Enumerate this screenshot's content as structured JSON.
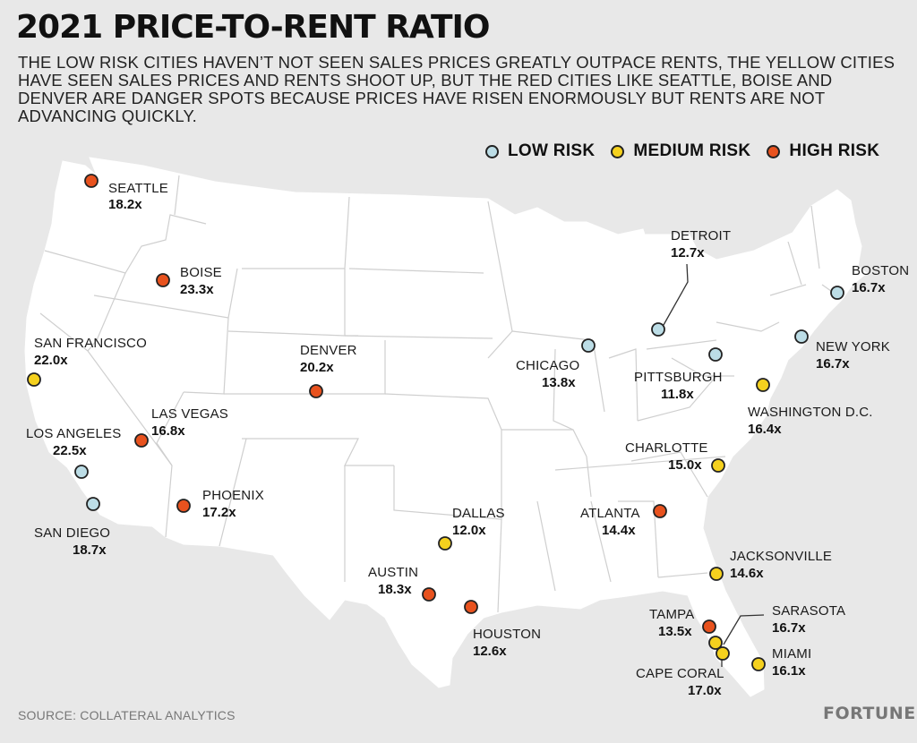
{
  "title": "2021 PRICE-TO-RENT RATIO",
  "subtitle": "THE LOW RISK CITIES HAVEN’T NOT SEEN SALES PRICES GREATLY OUTPACE RENTS, THE YELLOW CITIES HAVE SEEN SALES PRICES AND RENTS SHOOT UP, BUT THE RED CITIES LIKE SEATTLE, BOISE AND DENVER ARE DANGER SPOTS BECAUSE PRICES HAVE RISEN ENORMOUSLY BUT RENTS ARE NOT ADVANCING QUICKLY.",
  "legend": [
    {
      "label": "LOW RISK",
      "color": "#bcdde6"
    },
    {
      "label": "MEDIUM RISK",
      "color": "#f5d11e"
    },
    {
      "label": "HIGH RISK",
      "color": "#e8521e"
    }
  ],
  "colors": {
    "background": "#e8e8e8",
    "land": "#ffffff",
    "border": "#cccccc",
    "marker_outline": "#222222"
  },
  "cities": [
    {
      "name": "SEATTLE",
      "ratio": "18.2x",
      "risk": "high"
    },
    {
      "name": "BOISE",
      "ratio": "23.3x",
      "risk": "high"
    },
    {
      "name": "SAN FRANCISCO",
      "ratio": "22.0x",
      "risk": "medium"
    },
    {
      "name": "DENVER",
      "ratio": "20.2x",
      "risk": "high"
    },
    {
      "name": "LAS VEGAS",
      "ratio": "16.8x",
      "risk": "high"
    },
    {
      "name": "LOS ANGELES",
      "ratio": "22.5x",
      "risk": "low"
    },
    {
      "name": "SAN DIEGO",
      "ratio": "18.7x",
      "risk": "low"
    },
    {
      "name": "PHOENIX",
      "ratio": "17.2x",
      "risk": "high"
    },
    {
      "name": "DALLAS",
      "ratio": "12.0x",
      "risk": "medium"
    },
    {
      "name": "AUSTIN",
      "ratio": "18.3x",
      "risk": "high"
    },
    {
      "name": "HOUSTON",
      "ratio": "12.6x",
      "risk": "high"
    },
    {
      "name": "CHICAGO",
      "ratio": "13.8x",
      "risk": "low"
    },
    {
      "name": "DETROIT",
      "ratio": "12.7x",
      "risk": "low"
    },
    {
      "name": "PITTSBURGH",
      "ratio": "11.8x",
      "risk": "low"
    },
    {
      "name": "BOSTON",
      "ratio": "16.7x",
      "risk": "low"
    },
    {
      "name": "NEW YORK",
      "ratio": "16.7x",
      "risk": "low"
    },
    {
      "name": "WASHINGTON D.C.",
      "ratio": "16.4x",
      "risk": "medium"
    },
    {
      "name": "CHARLOTTE",
      "ratio": "15.0x",
      "risk": "medium"
    },
    {
      "name": "ATLANTA",
      "ratio": "14.4x",
      "risk": "high"
    },
    {
      "name": "JACKSONVILLE",
      "ratio": "14.6x",
      "risk": "medium"
    },
    {
      "name": "TAMPA",
      "ratio": "13.5x",
      "risk": "high"
    },
    {
      "name": "SARASOTA",
      "ratio": "16.7x",
      "risk": "medium"
    },
    {
      "name": "CAPE CORAL",
      "ratio": "17.0x",
      "risk": "medium"
    },
    {
      "name": "MIAMI",
      "ratio": "16.1x",
      "risk": "medium"
    }
  ],
  "source": "SOURCE: COLLATERAL ANALYTICS",
  "brand": "FORTUNE"
}
